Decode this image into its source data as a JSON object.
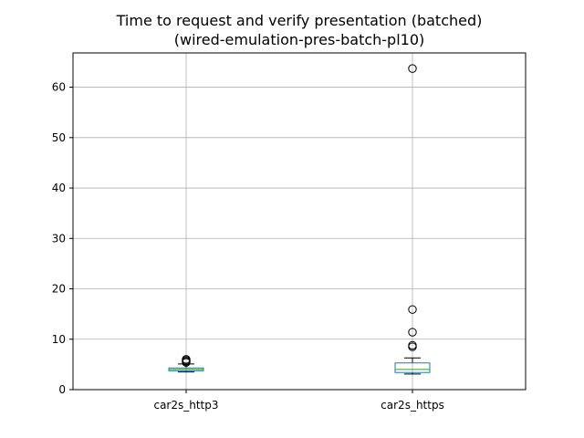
{
  "chart_data": {
    "type": "box",
    "title": "Time to request and verify presentation (batched)",
    "subtitle": "(wired-emulation-pres-batch-pl10)",
    "xlabel": "",
    "ylabel": "",
    "ylim": [
      0,
      66.8
    ],
    "yticks": [
      0,
      10,
      20,
      30,
      40,
      50,
      60
    ],
    "grid": true,
    "categories": [
      "car2s_http3",
      "car2s_https"
    ],
    "boxes": [
      {
        "label": "car2s_http3",
        "whisker_low": 3.5,
        "q1": 3.75,
        "median": 4.0,
        "q3": 4.3,
        "whisker_high": 5.1,
        "outliers": [
          5.4,
          5.6,
          5.8,
          6.0
        ]
      },
      {
        "label": "car2s_https",
        "whisker_low": 3.1,
        "q1": 3.4,
        "median": 4.0,
        "q3": 5.3,
        "whisker_high": 6.3,
        "outliers": [
          8.5,
          8.8,
          11.4,
          15.9,
          63.7
        ]
      }
    ],
    "colors": {
      "box": "#1f77b4",
      "median": "#2ca02c",
      "whisker": "#000000",
      "grid": "#b0b0b0",
      "axes": "#000000"
    }
  }
}
